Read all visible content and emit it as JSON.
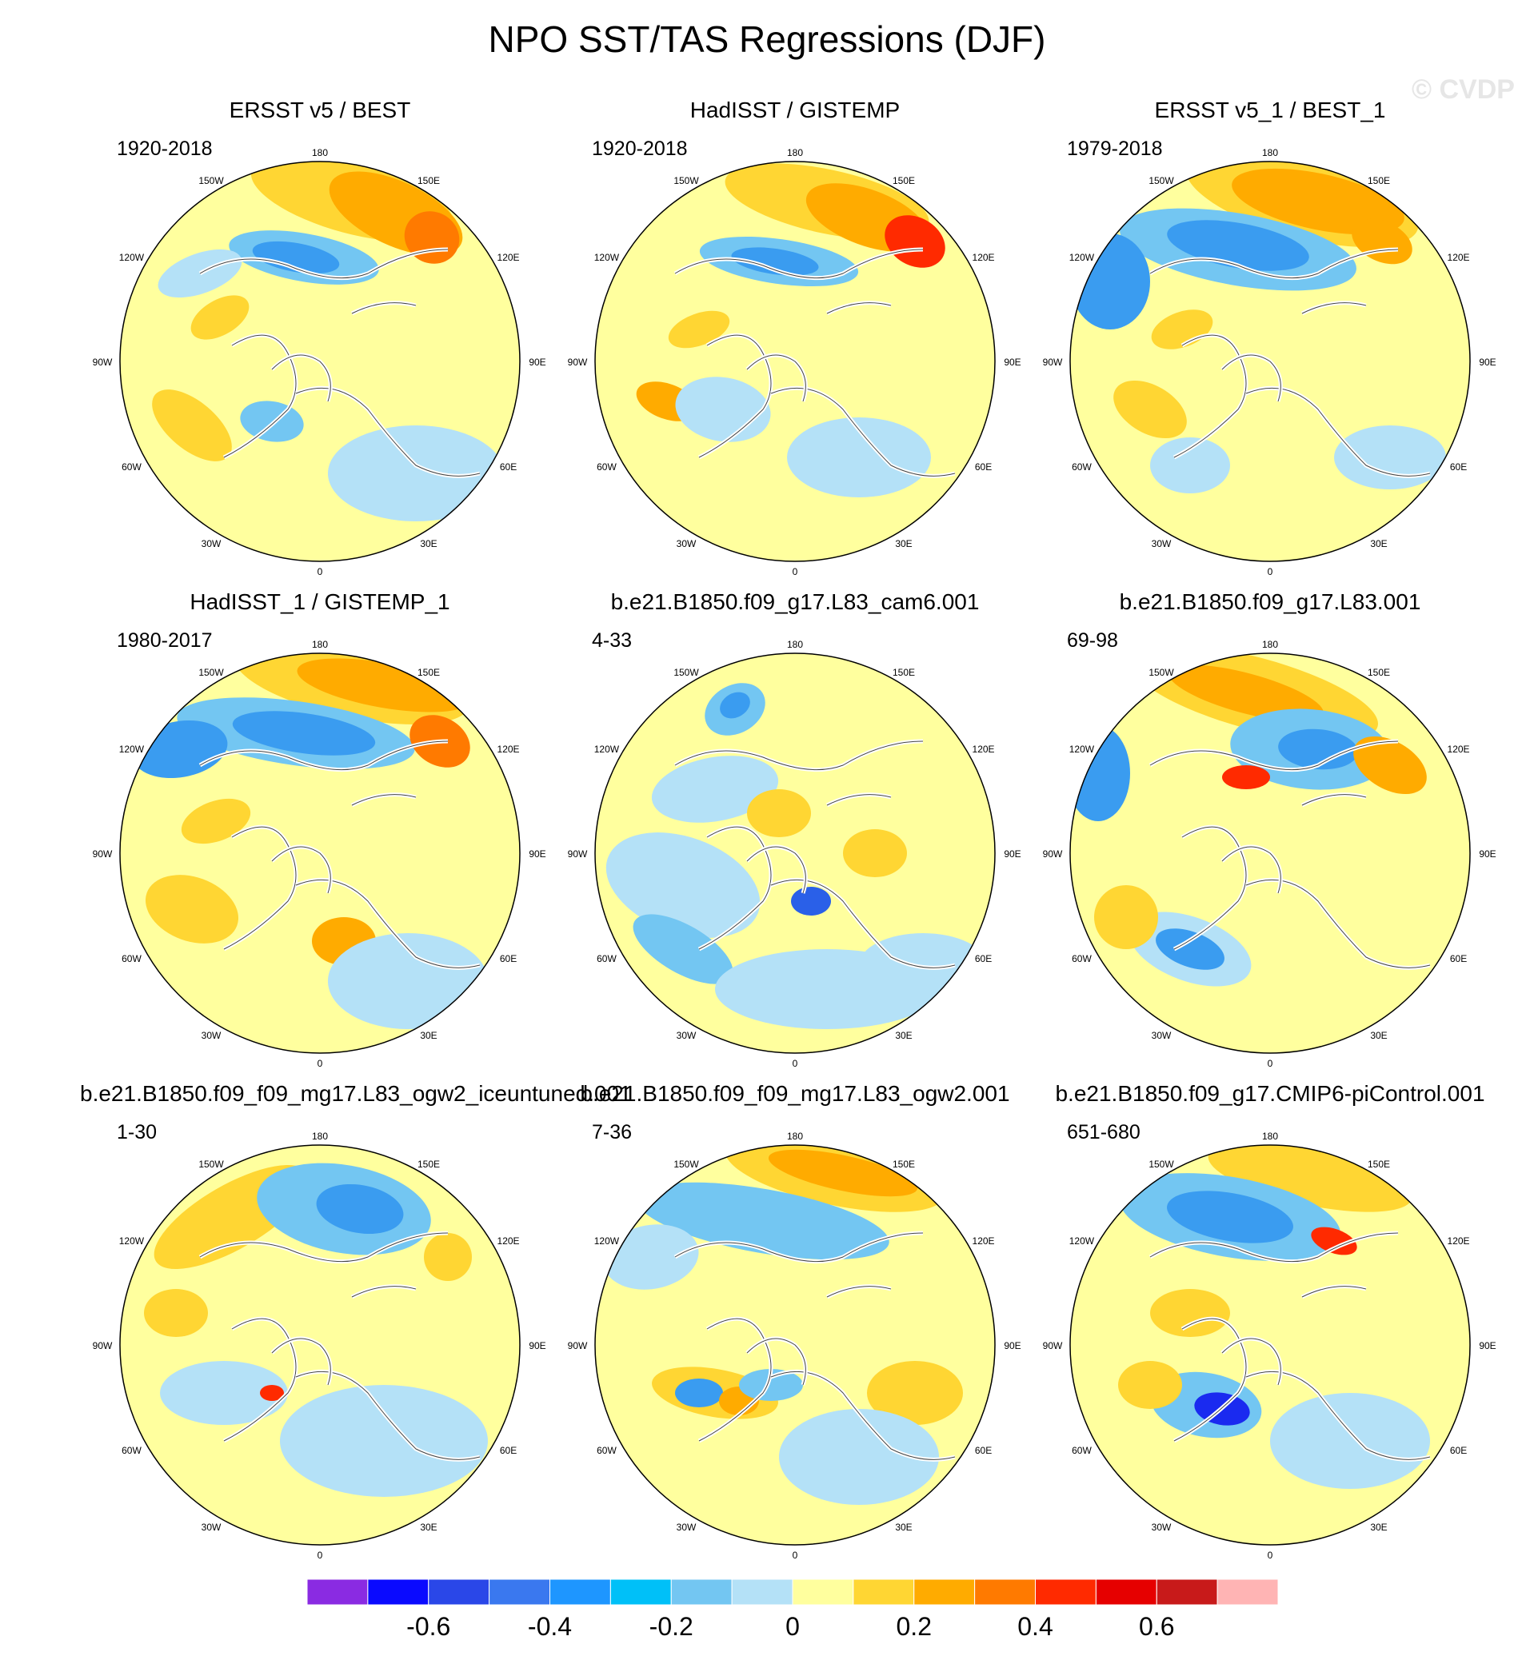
{
  "title": "NPO SST/TAS Regressions (DJF)",
  "watermark": "© CVDP",
  "longitude_labels": [
    "180",
    "150E",
    "120E",
    "90E",
    "60E",
    "30E",
    "0",
    "30W",
    "60W",
    "90W",
    "120W",
    "150W"
  ],
  "panels": [
    {
      "title": "ERSST v5 / BEST",
      "period": "1920-2018"
    },
    {
      "title": "HadISST / GISTEMP",
      "period": "1920-2018"
    },
    {
      "title": "ERSST v5_1 / BEST_1",
      "period": "1979-2018"
    },
    {
      "title": "HadISST_1 / GISTEMP_1",
      "period": "1980-2017"
    },
    {
      "title": "b.e21.B1850.f09_g17.L83_cam6.001",
      "period": "4-33"
    },
    {
      "title": "b.e21.B1850.f09_g17.L83.001",
      "period": "69-98"
    },
    {
      "title": "b.e21.B1850.f09_f09_mg17.L83_ogw2_iceuntuned.001",
      "period": "1-30"
    },
    {
      "title": "b.e21.B1850.f09_f09_mg17.L83_ogw2.001",
      "period": "7-36"
    },
    {
      "title": "b.e21.B1850.f09_g17.CMIP6-piControl.001",
      "period": "651-680"
    }
  ],
  "colorbar": {
    "colors": [
      "#8a2be2",
      "#0a0aff",
      "#2a47e8",
      "#3a78ef",
      "#1e96ff",
      "#00c0f8",
      "#73c6f2",
      "#b4e1f7",
      "#ffff9e",
      "#ffd633",
      "#ffab00",
      "#ff7a00",
      "#ff2a00",
      "#e60000",
      "#c81a1a",
      "#ffb4b4"
    ],
    "labels": [
      "-0.6",
      "-0.4",
      "-0.2",
      "0",
      "0.2",
      "0.4",
      "0.6"
    ],
    "label_values": [
      -0.6,
      -0.4,
      -0.2,
      0,
      0.2,
      0.4,
      0.6
    ],
    "range": [
      -0.8,
      0.8
    ]
  },
  "palette": {
    "neutral_pos": "#ffff9e",
    "neutral_neg": "#b4e1f7",
    "blue1": "#73c6f2",
    "blue2": "#3a9cf0",
    "blue3": "#2a60e8",
    "blue4": "#1a2af0",
    "gold": "#ffd633",
    "orange": "#ffab00",
    "orange2": "#ff7a00",
    "red": "#ff2a00",
    "darkred": "#e60000",
    "coast": "#ffffff",
    "coast_line": "#444444"
  }
}
